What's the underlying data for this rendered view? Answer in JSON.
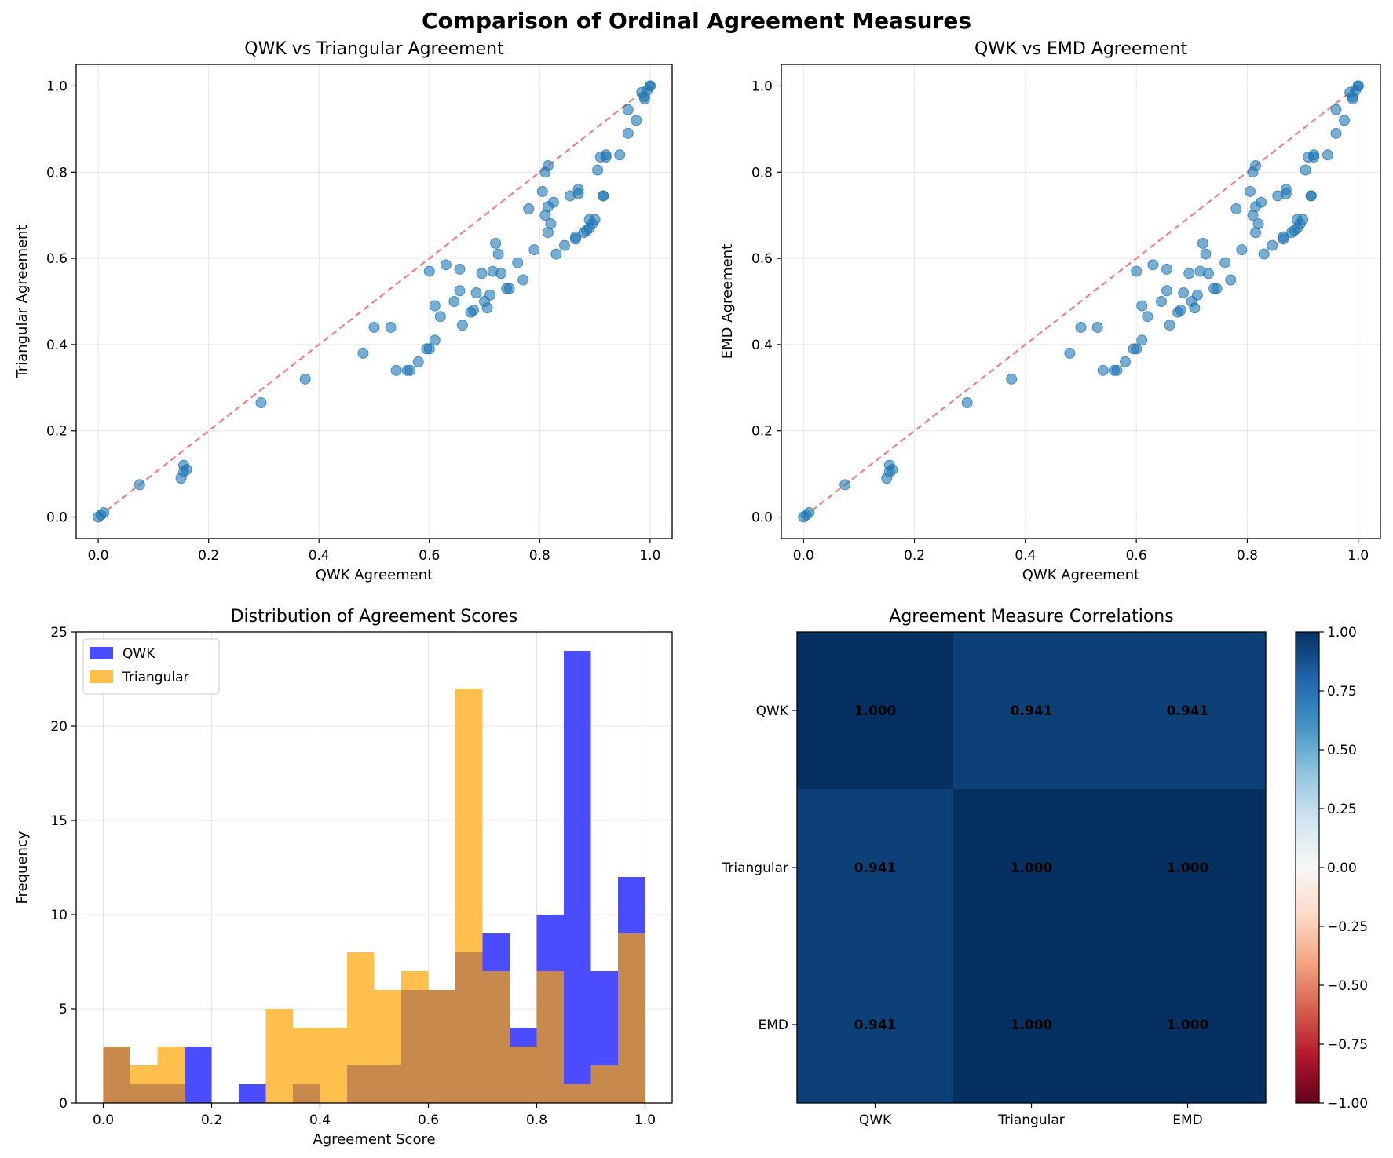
{
  "figure": {
    "title": "Comparison of Ordinal Agreement Measures"
  },
  "colors": {
    "scatter": "#1f77b4",
    "diagonal": "#f08080",
    "qwk": "#4c4cff",
    "triangular": "#ffbf4d",
    "overlap": "#c8894c"
  },
  "chart_data": [
    {
      "type": "scatter",
      "title": "QWK vs Triangular Agreement",
      "xlabel": "QWK Agreement",
      "ylabel": "Triangular Agreement",
      "xlim": [
        -0.04,
        1.04
      ],
      "ylim": [
        -0.05,
        1.05
      ],
      "xticks": [
        0.0,
        0.2,
        0.4,
        0.6,
        0.8,
        1.0
      ],
      "yticks": [
        0.0,
        0.2,
        0.4,
        0.6,
        0.8,
        1.0
      ],
      "grid": true,
      "reference_line": [
        [
          0,
          0
        ],
        [
          1,
          1
        ]
      ],
      "points": [
        [
          0.0,
          0.0
        ],
        [
          0.01,
          0.01
        ],
        [
          0.005,
          0.005
        ],
        [
          0.075,
          0.075
        ],
        [
          0.15,
          0.09
        ],
        [
          0.155,
          0.12
        ],
        [
          0.16,
          0.11
        ],
        [
          0.155,
          0.105
        ],
        [
          0.295,
          0.265
        ],
        [
          0.375,
          0.32
        ],
        [
          0.48,
          0.38
        ],
        [
          0.5,
          0.44
        ],
        [
          0.53,
          0.44
        ],
        [
          0.54,
          0.34
        ],
        [
          0.56,
          0.34
        ],
        [
          0.565,
          0.34
        ],
        [
          0.58,
          0.36
        ],
        [
          0.595,
          0.39
        ],
        [
          0.6,
          0.39
        ],
        [
          0.61,
          0.41
        ],
        [
          0.6,
          0.57
        ],
        [
          0.61,
          0.49
        ],
        [
          0.62,
          0.465
        ],
        [
          0.63,
          0.585
        ],
        [
          0.645,
          0.5
        ],
        [
          0.655,
          0.525
        ],
        [
          0.655,
          0.575
        ],
        [
          0.66,
          0.445
        ],
        [
          0.675,
          0.475
        ],
        [
          0.68,
          0.48
        ],
        [
          0.685,
          0.52
        ],
        [
          0.695,
          0.565
        ],
        [
          0.7,
          0.5
        ],
        [
          0.705,
          0.485
        ],
        [
          0.71,
          0.515
        ],
        [
          0.715,
          0.57
        ],
        [
          0.72,
          0.635
        ],
        [
          0.725,
          0.61
        ],
        [
          0.73,
          0.565
        ],
        [
          0.74,
          0.53
        ],
        [
          0.745,
          0.53
        ],
        [
          0.76,
          0.59
        ],
        [
          0.77,
          0.55
        ],
        [
          0.78,
          0.715
        ],
        [
          0.79,
          0.62
        ],
        [
          0.805,
          0.755
        ],
        [
          0.81,
          0.7
        ],
        [
          0.81,
          0.8
        ],
        [
          0.815,
          0.815
        ],
        [
          0.815,
          0.72
        ],
        [
          0.815,
          0.66
        ],
        [
          0.82,
          0.68
        ],
        [
          0.825,
          0.73
        ],
        [
          0.83,
          0.61
        ],
        [
          0.845,
          0.63
        ],
        [
          0.855,
          0.745
        ],
        [
          0.865,
          0.645
        ],
        [
          0.865,
          0.65
        ],
        [
          0.87,
          0.75
        ],
        [
          0.87,
          0.76
        ],
        [
          0.88,
          0.66
        ],
        [
          0.885,
          0.665
        ],
        [
          0.89,
          0.69
        ],
        [
          0.89,
          0.67
        ],
        [
          0.895,
          0.68
        ],
        [
          0.9,
          0.69
        ],
        [
          0.905,
          0.805
        ],
        [
          0.91,
          0.835
        ],
        [
          0.915,
          0.745
        ],
        [
          0.915,
          0.745
        ],
        [
          0.92,
          0.835
        ],
        [
          0.92,
          0.84
        ],
        [
          0.945,
          0.84
        ],
        [
          0.96,
          0.89
        ],
        [
          0.96,
          0.945
        ],
        [
          0.975,
          0.92
        ],
        [
          0.985,
          0.985
        ],
        [
          0.99,
          0.975
        ],
        [
          0.99,
          0.97
        ],
        [
          0.995,
          0.99
        ],
        [
          1.0,
          1.0
        ],
        [
          1.0,
          1.0
        ]
      ]
    },
    {
      "type": "scatter",
      "title": "QWK vs EMD Agreement",
      "xlabel": "QWK Agreement",
      "ylabel": "EMD Agreement",
      "xlim": [
        -0.04,
        1.04
      ],
      "ylim": [
        -0.05,
        1.05
      ],
      "xticks": [
        0.0,
        0.2,
        0.4,
        0.6,
        0.8,
        1.0
      ],
      "yticks": [
        0.0,
        0.2,
        0.4,
        0.6,
        0.8,
        1.0
      ],
      "grid": true,
      "reference_line": [
        [
          0,
          0
        ],
        [
          1,
          1
        ]
      ],
      "points": [
        [
          0.0,
          0.0
        ],
        [
          0.01,
          0.01
        ],
        [
          0.005,
          0.005
        ],
        [
          0.075,
          0.075
        ],
        [
          0.15,
          0.09
        ],
        [
          0.155,
          0.12
        ],
        [
          0.16,
          0.11
        ],
        [
          0.155,
          0.105
        ],
        [
          0.295,
          0.265
        ],
        [
          0.375,
          0.32
        ],
        [
          0.48,
          0.38
        ],
        [
          0.5,
          0.44
        ],
        [
          0.53,
          0.44
        ],
        [
          0.54,
          0.34
        ],
        [
          0.56,
          0.34
        ],
        [
          0.565,
          0.34
        ],
        [
          0.58,
          0.36
        ],
        [
          0.595,
          0.39
        ],
        [
          0.6,
          0.39
        ],
        [
          0.61,
          0.41
        ],
        [
          0.6,
          0.57
        ],
        [
          0.61,
          0.49
        ],
        [
          0.62,
          0.465
        ],
        [
          0.63,
          0.585
        ],
        [
          0.645,
          0.5
        ],
        [
          0.655,
          0.525
        ],
        [
          0.655,
          0.575
        ],
        [
          0.66,
          0.445
        ],
        [
          0.675,
          0.475
        ],
        [
          0.68,
          0.48
        ],
        [
          0.685,
          0.52
        ],
        [
          0.695,
          0.565
        ],
        [
          0.7,
          0.5
        ],
        [
          0.705,
          0.485
        ],
        [
          0.71,
          0.515
        ],
        [
          0.715,
          0.57
        ],
        [
          0.72,
          0.635
        ],
        [
          0.725,
          0.61
        ],
        [
          0.73,
          0.565
        ],
        [
          0.74,
          0.53
        ],
        [
          0.745,
          0.53
        ],
        [
          0.76,
          0.59
        ],
        [
          0.77,
          0.55
        ],
        [
          0.78,
          0.715
        ],
        [
          0.79,
          0.62
        ],
        [
          0.805,
          0.755
        ],
        [
          0.81,
          0.7
        ],
        [
          0.81,
          0.8
        ],
        [
          0.815,
          0.815
        ],
        [
          0.815,
          0.72
        ],
        [
          0.815,
          0.66
        ],
        [
          0.82,
          0.68
        ],
        [
          0.825,
          0.73
        ],
        [
          0.83,
          0.61
        ],
        [
          0.845,
          0.63
        ],
        [
          0.855,
          0.745
        ],
        [
          0.865,
          0.645
        ],
        [
          0.865,
          0.65
        ],
        [
          0.87,
          0.75
        ],
        [
          0.87,
          0.76
        ],
        [
          0.88,
          0.66
        ],
        [
          0.885,
          0.665
        ],
        [
          0.89,
          0.69
        ],
        [
          0.89,
          0.67
        ],
        [
          0.895,
          0.68
        ],
        [
          0.9,
          0.69
        ],
        [
          0.905,
          0.805
        ],
        [
          0.91,
          0.835
        ],
        [
          0.915,
          0.745
        ],
        [
          0.915,
          0.745
        ],
        [
          0.92,
          0.835
        ],
        [
          0.92,
          0.84
        ],
        [
          0.945,
          0.84
        ],
        [
          0.96,
          0.89
        ],
        [
          0.96,
          0.945
        ],
        [
          0.975,
          0.92
        ],
        [
          0.985,
          0.985
        ],
        [
          0.99,
          0.975
        ],
        [
          0.99,
          0.97
        ],
        [
          0.995,
          0.99
        ],
        [
          1.0,
          1.0
        ],
        [
          1.0,
          1.0
        ]
      ]
    },
    {
      "type": "histogram",
      "title": "Distribution of Agreement Scores",
      "xlabel": "Agreement Score",
      "ylabel": "Frequency",
      "xlim": [
        -0.05,
        1.05
      ],
      "ylim": [
        0,
        25
      ],
      "xticks": [
        0.0,
        0.2,
        0.4,
        0.6,
        0.8,
        1.0
      ],
      "yticks": [
        0,
        5,
        10,
        15,
        20,
        25
      ],
      "grid": true,
      "legend_position": "top-left",
      "bin_edges": [
        0.0,
        0.05,
        0.1,
        0.15,
        0.2,
        0.25,
        0.3,
        0.35,
        0.4,
        0.45,
        0.5,
        0.55,
        0.6,
        0.65,
        0.7,
        0.75,
        0.8,
        0.85,
        0.9,
        0.95,
        1.0
      ],
      "series": [
        {
          "name": "QWK",
          "values": [
            3,
            1,
            1,
            3,
            0,
            1,
            0,
            1,
            0,
            2,
            2,
            6,
            6,
            8,
            9,
            4,
            10,
            24,
            7,
            12
          ]
        },
        {
          "name": "Triangular",
          "values": [
            3,
            2,
            3,
            0,
            0,
            0,
            5,
            4,
            4,
            8,
            6,
            7,
            6,
            22,
            7,
            3,
            7,
            1,
            2,
            9
          ]
        }
      ]
    },
    {
      "type": "heatmap",
      "title": "Agreement Measure Correlations",
      "x_categories": [
        "QWK",
        "Triangular",
        "EMD"
      ],
      "y_categories": [
        "QWK",
        "Triangular",
        "EMD"
      ],
      "values": [
        [
          1.0,
          0.941,
          0.941
        ],
        [
          0.941,
          1.0,
          1.0
        ],
        [
          0.941,
          1.0,
          1.0
        ]
      ],
      "labels": [
        [
          "1.000",
          "0.941",
          "0.941"
        ],
        [
          "0.941",
          "1.000",
          "1.000"
        ],
        [
          "0.941",
          "1.000",
          "1.000"
        ]
      ],
      "colormap": "RdBu",
      "vmin": -1.0,
      "vmax": 1.0,
      "colorbar_ticks": [
        1.0,
        0.75,
        0.5,
        0.25,
        0.0,
        -0.25,
        -0.5,
        -0.75,
        -1.0
      ],
      "colorbar_tick_labels": [
        "1.00",
        "0.75",
        "0.50",
        "0.25",
        "0.00",
        "−0.25",
        "−0.50",
        "−0.75",
        "−1.00"
      ]
    }
  ]
}
